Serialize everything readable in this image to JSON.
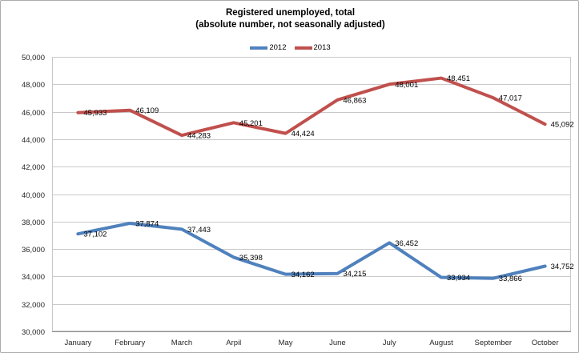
{
  "chart_data": {
    "type": "line",
    "title": "Registered unemployed, total",
    "subtitle": "(absolute number, not seasonally adjusted)",
    "categories": [
      "January",
      "February",
      "March",
      "Arpil",
      "May",
      "June",
      "July",
      "August",
      "September",
      "October"
    ],
    "series": [
      {
        "name": "2012",
        "color": "#4F81BD",
        "values": [
          37102,
          37874,
          37443,
          35398,
          34162,
          34215,
          36452,
          33934,
          33866,
          34752
        ]
      },
      {
        "name": "2013",
        "color": "#C0504D",
        "values": [
          45933,
          46109,
          44283,
          45201,
          44424,
          46863,
          48001,
          48451,
          47017,
          45092
        ]
      }
    ],
    "ylim": [
      30000,
      50000
    ],
    "ytick_step": 2000,
    "ytick_labels": [
      "30,000",
      "32,000",
      "34,000",
      "36,000",
      "38,000",
      "40,000",
      "42,000",
      "44,000",
      "46,000",
      "48,000",
      "50,000"
    ],
    "grid": "horizontal",
    "legend_position": "top-center",
    "data_labels": "right",
    "colors": {
      "gridline": "#C9C9C9",
      "axis_line": "#8E8E8E",
      "plot_border": "#C9C9C9",
      "chart_border": "#ABABAB",
      "label_text": "#000000",
      "tick_text": "#262626"
    }
  }
}
